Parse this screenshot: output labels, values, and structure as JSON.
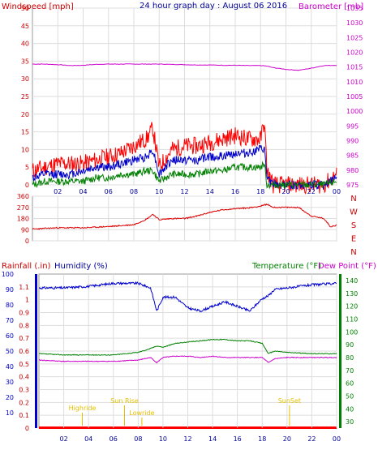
{
  "titles": {
    "windspeed": "Windspeed [mph]",
    "graph_day": "24 hour graph day : August 06 2016",
    "barometer": "Barometer [mb]",
    "rainfall": "Rainfall (.in)",
    "humidity": "Humidity (%)",
    "temperature": "Temperature (°F)",
    "dewpoint": "Dew Point (°F)"
  },
  "colors": {
    "wind": "#ff0000",
    "gust_avg": "#0000cc",
    "wind_low": "#008000",
    "barometer": "#cc00cc",
    "direction": "#dd0000",
    "rain": "#ff0000",
    "humidity": "#0000cc",
    "temperature": "#008000",
    "dewpoint": "#cc00cc",
    "annotation": "#e6c000",
    "rain_axis": "#ff0000",
    "hum_axis": "#0000cc",
    "temp_axis": "#008000"
  },
  "chart_data": [
    {
      "type": "line",
      "panel": "wind-barometer",
      "x_ticks": [
        "02",
        "04",
        "06",
        "08",
        "10",
        "12",
        "14",
        "16",
        "18",
        "20",
        "22",
        "00"
      ],
      "left_axis": {
        "ylim": [
          0,
          50
        ],
        "ticks": [
          "0",
          "5",
          "10",
          "15",
          "20",
          "25",
          "30",
          "35",
          "40",
          "45",
          "50"
        ]
      },
      "right_axis": {
        "ylim": [
          975,
          1035
        ],
        "ticks": [
          "975",
          "980",
          "985",
          "990",
          "995",
          "1000",
          "1005",
          "1010",
          "1015",
          "1020",
          "1025",
          "1030",
          "1035"
        ]
      },
      "x": [
        0,
        1,
        2,
        3,
        4,
        5,
        6,
        7,
        8,
        9,
        9.5,
        10,
        11,
        12,
        13,
        14,
        15,
        16,
        17,
        18,
        18.3,
        18.5,
        19,
        20,
        21,
        22,
        23,
        24
      ],
      "series": [
        {
          "role": "max",
          "values": [
            4,
            5,
            6,
            6,
            6,
            7,
            8,
            9,
            11,
            13,
            16,
            5,
            10,
            11,
            11,
            12,
            13,
            14,
            13,
            13,
            18,
            4,
            0,
            0,
            0,
            0,
            0,
            3
          ]
        },
        {
          "role": "avg",
          "values": [
            2,
            3,
            3,
            3,
            4,
            5,
            5,
            6,
            7,
            8,
            10,
            3,
            7,
            7,
            7,
            8,
            8,
            9,
            9,
            10,
            10,
            2,
            0,
            0,
            0,
            0,
            0,
            2
          ]
        },
        {
          "role": "min",
          "values": [
            0,
            1,
            1,
            1,
            1,
            2,
            2,
            3,
            3,
            4,
            4,
            1,
            3,
            3,
            3,
            4,
            4,
            5,
            5,
            5,
            6,
            0,
            0,
            0,
            0,
            0,
            0,
            1
          ]
        },
        {
          "role": "barometer",
          "values": [
            1016.0,
            1016.0,
            1015.8,
            1015.5,
            1015.6,
            1015.9,
            1016.0,
            1016.0,
            1016.0,
            1016.0,
            1016.0,
            1016.0,
            1015.9,
            1015.8,
            1015.7,
            1015.7,
            1015.6,
            1015.6,
            1015.5,
            1015.5,
            1015.4,
            1015.3,
            1014.8,
            1014.2,
            1013.9,
            1014.6,
            1015.5,
            1015.6
          ]
        }
      ]
    },
    {
      "type": "line",
      "panel": "wind-direction",
      "x_ticks": [
        "02",
        "04",
        "06",
        "08",
        "10",
        "12",
        "14",
        "16",
        "18",
        "20",
        "22",
        "00"
      ],
      "ylim": [
        0,
        360
      ],
      "y_ticks": [
        "0",
        "90",
        "180",
        "270",
        "360"
      ],
      "compass": [
        "N",
        "W",
        "S",
        "E",
        "N"
      ],
      "x": [
        0,
        2,
        4,
        6,
        8,
        9,
        9.5,
        10,
        11,
        12,
        13,
        14,
        15,
        16,
        17,
        18,
        18.5,
        19,
        20,
        21,
        22,
        23,
        23.5,
        24
      ],
      "values": [
        95,
        105,
        105,
        115,
        130,
        175,
        215,
        170,
        180,
        180,
        200,
        230,
        250,
        260,
        265,
        280,
        295,
        270,
        270,
        270,
        200,
        180,
        115,
        125
      ]
    },
    {
      "type": "line",
      "panel": "humidity-temperature",
      "x_ticks": [
        "02",
        "04",
        "06",
        "08",
        "10",
        "12",
        "14",
        "16",
        "18",
        "20",
        "22",
        "00"
      ],
      "rain_axis": {
        "ylim": [
          0,
          1.2
        ],
        "ticks": [
          "0",
          "0.1",
          "0.2",
          "0.3",
          "0.4",
          "0.5",
          "0.6",
          "0.7",
          "0.8",
          "0.9",
          "1",
          "1.1"
        ]
      },
      "humidity_axis": {
        "ylim": [
          0,
          100
        ],
        "ticks": [
          "10",
          "20",
          "30",
          "40",
          "50",
          "60",
          "70",
          "80",
          "90",
          "100"
        ]
      },
      "temp_axis": {
        "ylim": [
          25,
          145
        ],
        "ticks": [
          "30",
          "40",
          "50",
          "60",
          "70",
          "80",
          "90",
          "100",
          "110",
          "120",
          "130",
          "140"
        ]
      },
      "annotations": [
        "Highride",
        "Sun Rise",
        "Lowride",
        "SunSet"
      ],
      "x": [
        0,
        2,
        4,
        6,
        8,
        9,
        9.5,
        10,
        11,
        12,
        13,
        14,
        15,
        16,
        17,
        18,
        18.5,
        19,
        20,
        22,
        24
      ],
      "series": [
        {
          "role": "humidity",
          "values": [
            91,
            91,
            92,
            94,
            94,
            91,
            76,
            85,
            85,
            78,
            76,
            79,
            82,
            79,
            76,
            84,
            86,
            90,
            91,
            93,
            94
          ]
        },
        {
          "role": "temperature",
          "values": [
            83,
            82,
            82,
            82,
            84,
            87,
            89,
            88,
            91,
            92,
            93,
            94,
            94,
            93,
            93,
            91,
            83,
            85,
            84,
            83,
            83
          ]
        },
        {
          "role": "dewpoint",
          "values": [
            78,
            77,
            77,
            77,
            78,
            80,
            76,
            80,
            81,
            81,
            80,
            81,
            80,
            80,
            80,
            80,
            76,
            79,
            80,
            80,
            80
          ]
        },
        {
          "role": "rainfall",
          "values": [
            0,
            0,
            0,
            0,
            0,
            0,
            0,
            0,
            0,
            0,
            0,
            0,
            0,
            0,
            0,
            0,
            0,
            0,
            0,
            0,
            0
          ]
        }
      ]
    }
  ]
}
